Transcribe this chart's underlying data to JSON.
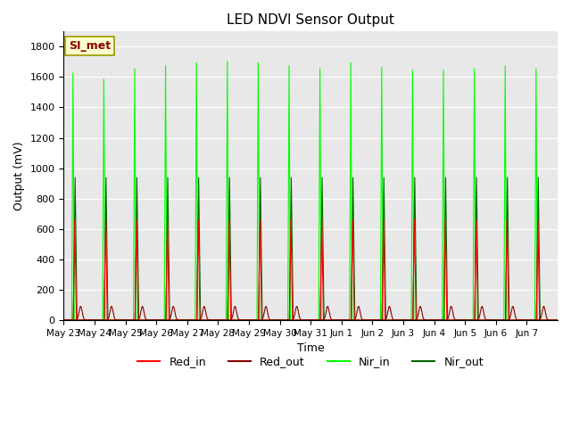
{
  "title": "LED NDVI Sensor Output",
  "xlabel": "Time",
  "ylabel": "Output (mV)",
  "ylim": [
    0,
    1900
  ],
  "yticks": [
    0,
    200,
    400,
    600,
    800,
    1000,
    1200,
    1400,
    1600,
    1800
  ],
  "num_cycles": 16,
  "nir_in_peaks": [
    1650,
    1610,
    1680,
    1700,
    1720,
    1730,
    1720,
    1700,
    1680,
    1720,
    1690,
    1670,
    1670,
    1680,
    1700,
    1680
  ],
  "red_in_peak": 670,
  "red_out_peak": 90,
  "nir_out_peak": 950,
  "colors": {
    "red_in": "#ff0000",
    "red_out": "#8b0000",
    "nir_in": "#00ff00",
    "nir_out": "#006400",
    "background": "#ffffff",
    "plot_bg": "#e8e8e8",
    "grid": "#ffffff"
  },
  "legend_label_box": "SI_met",
  "legend_labels": [
    "Red_in",
    "Red_out",
    "Nir_in",
    "Nir_out"
  ],
  "x_tick_labels": [
    "May 23",
    "May 24",
    "May 25",
    "May 26",
    "May 27",
    "May 28",
    "May 29",
    "May 30",
    "May 31",
    "Jun 1",
    "Jun 2",
    "Jun 3",
    "Jun 4",
    "Jun 5",
    "Jun 6",
    "Jun 7"
  ],
  "figsize": [
    6.4,
    4.8
  ],
  "dpi": 100
}
